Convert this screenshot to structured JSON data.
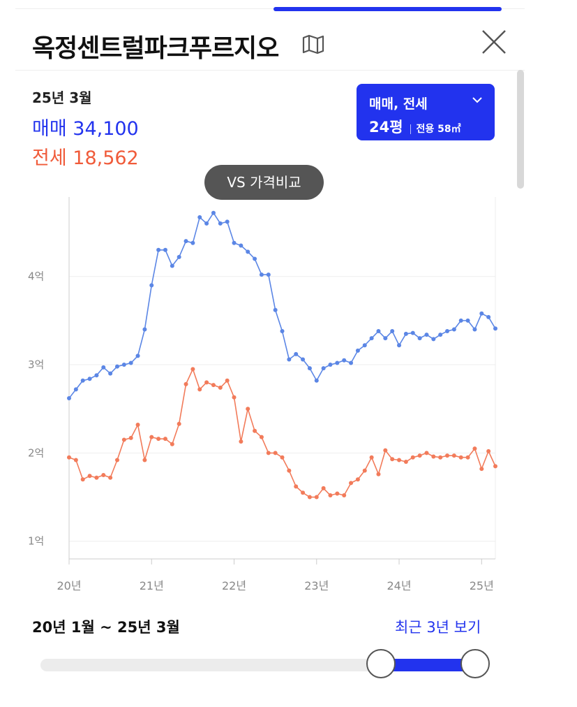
{
  "header": {
    "title": "옥정센트럴파크푸르지오",
    "map_icon": "map-icon",
    "close_icon": "close-icon"
  },
  "summary": {
    "date": "25년 3월",
    "sale_label": "매매 34,100",
    "jeonse_label": "전세 18,562"
  },
  "type_selector": {
    "label": "매매, 전세",
    "size": "24평",
    "area": "전용 58㎡"
  },
  "compare_button": {
    "label": "VS 가격비교"
  },
  "colors": {
    "accent": "#2233ee",
    "sale_line": "#5b86e5",
    "jeonse_line": "#f27b5a"
  },
  "chart_data": {
    "type": "line",
    "y_unit": "억",
    "y_tick_labels": [
      "1억",
      "2억",
      "3억",
      "4억"
    ],
    "y_ticks": [
      1,
      2,
      3,
      4
    ],
    "x_tick_labels": [
      "20년",
      "21년",
      "22년",
      "23년",
      "24년",
      "25년"
    ],
    "x_ticks": [
      0,
      12,
      24,
      36,
      48,
      60
    ],
    "x_range": [
      0,
      62
    ],
    "y_range": [
      0.8,
      4.9
    ],
    "grid": true,
    "series": [
      {
        "name": "매매",
        "color": "#5b86e5",
        "values": [
          2.62,
          2.72,
          2.82,
          2.84,
          2.88,
          2.97,
          2.9,
          2.98,
          3.0,
          3.02,
          3.1,
          3.4,
          3.9,
          4.3,
          4.3,
          4.12,
          4.22,
          4.4,
          4.38,
          4.67,
          4.6,
          4.72,
          4.6,
          4.62,
          4.38,
          4.35,
          4.28,
          4.2,
          4.02,
          4.02,
          3.62,
          3.38,
          3.06,
          3.12,
          3.06,
          2.96,
          2.82,
          2.96,
          3.0,
          3.02,
          3.05,
          3.02,
          3.16,
          3.22,
          3.3,
          3.38,
          3.3,
          3.38,
          3.22,
          3.35,
          3.36,
          3.3,
          3.34,
          3.29,
          3.34,
          3.38,
          3.4,
          3.5,
          3.5,
          3.4,
          3.58,
          3.54,
          3.41
        ]
      },
      {
        "name": "전세",
        "color": "#f27b5a",
        "values": [
          1.95,
          1.92,
          1.7,
          1.74,
          1.72,
          1.75,
          1.72,
          1.92,
          2.15,
          2.17,
          2.32,
          1.92,
          2.18,
          2.16,
          2.16,
          2.1,
          2.33,
          2.78,
          2.95,
          2.72,
          2.8,
          2.77,
          2.74,
          2.82,
          2.63,
          2.13,
          2.5,
          2.25,
          2.18,
          2.0,
          2.0,
          1.95,
          1.8,
          1.62,
          1.55,
          1.5,
          1.5,
          1.6,
          1.52,
          1.54,
          1.52,
          1.66,
          1.7,
          1.8,
          1.95,
          1.76,
          2.03,
          1.93,
          1.92,
          1.9,
          1.95,
          1.97,
          2.0,
          1.96,
          1.95,
          1.97,
          1.97,
          1.95,
          1.95,
          2.05,
          1.82,
          2.02,
          1.85
        ]
      }
    ]
  },
  "range": {
    "label": "20년 1월 ~ 25년 3월",
    "recent_link": "최근 3년 보기",
    "start_fraction": 0.76,
    "end_fraction": 0.97
  }
}
